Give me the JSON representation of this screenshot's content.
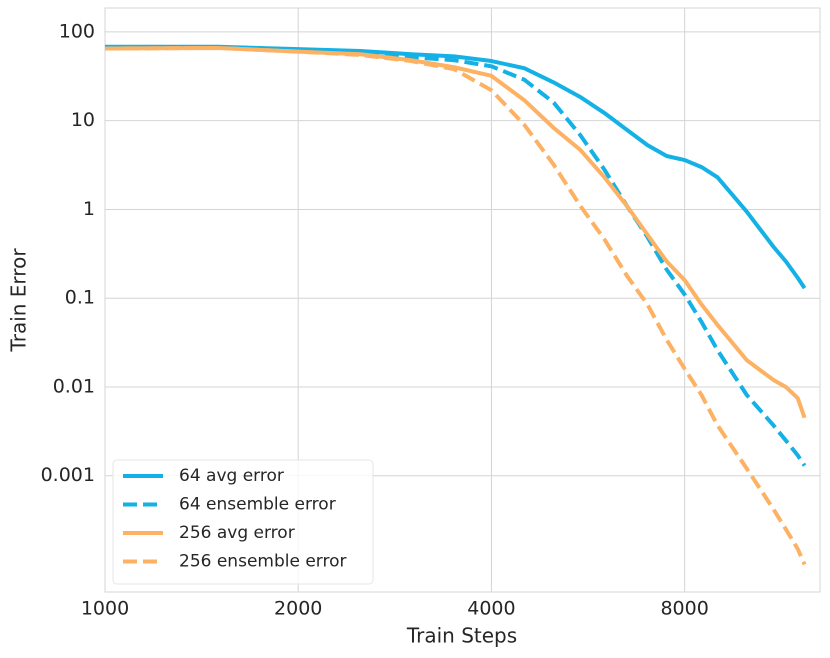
{
  "chart_data": {
    "type": "line",
    "xlabel": "Train Steps",
    "ylabel": "Train Error",
    "xscale": "log",
    "yscale": "log",
    "grid": true,
    "legend": "lower left",
    "xlim": [
      1000,
      13000
    ],
    "ylim": [
      4.9e-05,
      186
    ],
    "xticks": [
      1000,
      2000,
      4000,
      8000
    ],
    "yticks": [
      0.001,
      0.01,
      0.1,
      1,
      10,
      100
    ],
    "x": [
      1000,
      1500,
      2000,
      2500,
      3000,
      3500,
      4000,
      4500,
      5000,
      5500,
      6000,
      6500,
      7000,
      7500,
      8000,
      8500,
      9000,
      10000,
      11000,
      11500,
      12000,
      12300
    ],
    "series": [
      {
        "name": "64 avg error",
        "color": "#13b1e6",
        "style": "solid",
        "values": [
          68,
          68,
          64,
          61,
          56,
          53,
          47,
          39,
          27,
          18.5,
          12.2,
          7.9,
          5.3,
          4.0,
          3.6,
          3.0,
          2.3,
          0.94,
          0.38,
          0.26,
          0.17,
          0.13
        ]
      },
      {
        "name": "64 ensemble error",
        "color": "#13b1e6",
        "style": "dashed",
        "values": [
          66,
          67,
          62,
          58,
          52,
          48,
          41,
          29,
          16,
          6.9,
          2.8,
          1.1,
          0.49,
          0.21,
          0.11,
          0.054,
          0.026,
          0.0081,
          0.0037,
          0.0025,
          0.0017,
          0.0013
        ]
      },
      {
        "name": "256 avg error",
        "color": "#fdb163",
        "style": "solid",
        "values": [
          65,
          66,
          60,
          56,
          48,
          40,
          32,
          17,
          8.3,
          4.7,
          2.3,
          1.1,
          0.52,
          0.26,
          0.16,
          0.085,
          0.05,
          0.02,
          0.012,
          0.01,
          0.0075,
          0.0045
        ]
      },
      {
        "name": "256 ensemble error",
        "color": "#fdb163",
        "style": "dashed",
        "values": [
          65,
          66,
          60,
          55,
          47,
          38,
          22,
          9.0,
          3.2,
          1.1,
          0.46,
          0.18,
          0.085,
          0.034,
          0.016,
          0.0081,
          0.0037,
          0.0012,
          0.00042,
          0.00025,
          0.00015,
          0.0001
        ]
      }
    ]
  }
}
